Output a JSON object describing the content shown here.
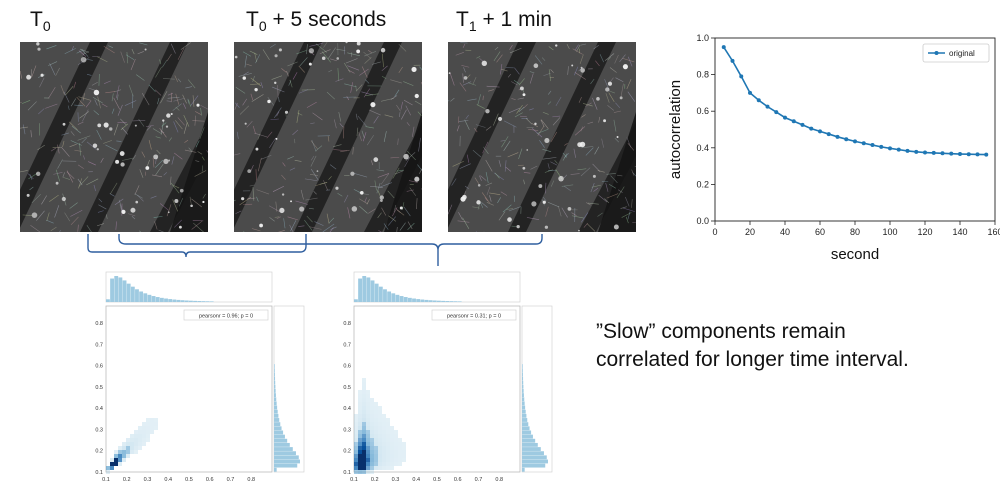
{
  "labels": {
    "t0": {
      "base": "T",
      "sub": "0",
      "suffix": ""
    },
    "t0_5s": {
      "base": "T",
      "sub": "0",
      "suffix": " + 5 seconds"
    },
    "t1_1min": {
      "base": "T",
      "sub": "1",
      "suffix": " + 1 min"
    }
  },
  "caption": {
    "line1": "”Slow” components remain",
    "line2": "correlated for longer time interval."
  },
  "chart_data": [
    {
      "type": "line",
      "xlabel": "second",
      "ylabel": "autocorrelation",
      "xlim": [
        0,
        160
      ],
      "ylim": [
        0.0,
        1.0
      ],
      "xticks": [
        0,
        20,
        40,
        60,
        80,
        100,
        120,
        140,
        160
      ],
      "yticks": [
        0.0,
        0.2,
        0.4,
        0.6,
        0.8,
        1.0
      ],
      "legend": "top-right",
      "grid": false,
      "color": "#1f77b4",
      "series": [
        {
          "name": "original",
          "x": [
            5,
            10,
            15,
            20,
            25,
            30,
            35,
            40,
            45,
            50,
            55,
            60,
            65,
            70,
            75,
            80,
            85,
            90,
            95,
            100,
            105,
            110,
            115,
            120,
            125,
            130,
            135,
            140,
            145,
            150,
            155
          ],
          "y": [
            0.95,
            0.875,
            0.79,
            0.7,
            0.66,
            0.625,
            0.595,
            0.565,
            0.545,
            0.525,
            0.505,
            0.49,
            0.475,
            0.46,
            0.447,
            0.435,
            0.425,
            0.415,
            0.405,
            0.397,
            0.39,
            0.383,
            0.378,
            0.374,
            0.372,
            0.37,
            0.368,
            0.366,
            0.365,
            0.364,
            0.363
          ]
        }
      ]
    },
    {
      "type": "heatmap",
      "annotation": "pearsonr = 0.96; p = 0",
      "xticks": [
        0.1,
        0.2,
        0.3,
        0.4,
        0.5,
        0.6,
        0.7,
        0.8
      ],
      "yticks": [
        0.1,
        0.2,
        0.3,
        0.4,
        0.5,
        0.6,
        0.7,
        0.8
      ],
      "xlim": [
        0.1,
        0.9
      ],
      "ylim": [
        0.1,
        0.88
      ],
      "pearsonr": 0.96,
      "color": "#1f77b4"
    },
    {
      "type": "heatmap",
      "annotation": "pearsonr = 0.31; p = 0",
      "xticks": [
        0.1,
        0.2,
        0.3,
        0.4,
        0.5,
        0.6,
        0.7,
        0.8
      ],
      "yticks": [
        0.1,
        0.2,
        0.3,
        0.4,
        0.5,
        0.6,
        0.7,
        0.8
      ],
      "xlim": [
        0.1,
        0.9
      ],
      "ylim": [
        0.1,
        0.88
      ],
      "pearsonr": 0.31,
      "color": "#1f77b4"
    }
  ]
}
